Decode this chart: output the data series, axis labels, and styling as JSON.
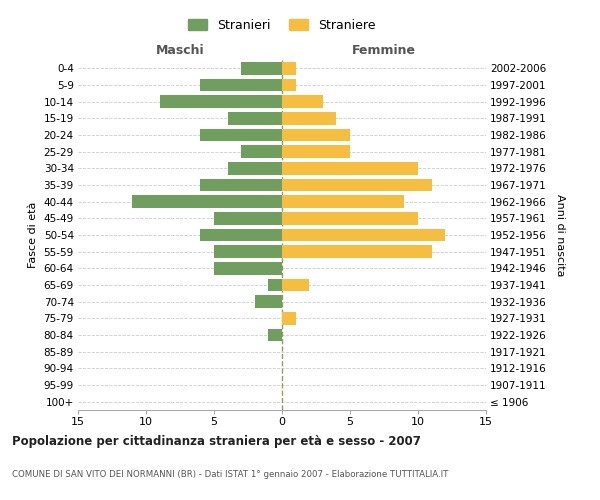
{
  "age_groups": [
    "100+",
    "95-99",
    "90-94",
    "85-89",
    "80-84",
    "75-79",
    "70-74",
    "65-69",
    "60-64",
    "55-59",
    "50-54",
    "45-49",
    "40-44",
    "35-39",
    "30-34",
    "25-29",
    "20-24",
    "15-19",
    "10-14",
    "5-9",
    "0-4"
  ],
  "birth_years": [
    "≤ 1906",
    "1907-1911",
    "1912-1916",
    "1917-1921",
    "1922-1926",
    "1927-1931",
    "1932-1936",
    "1937-1941",
    "1942-1946",
    "1947-1951",
    "1952-1956",
    "1957-1961",
    "1962-1966",
    "1967-1971",
    "1972-1976",
    "1977-1981",
    "1982-1986",
    "1987-1991",
    "1992-1996",
    "1997-2001",
    "2002-2006"
  ],
  "maschi": [
    0,
    0,
    0,
    0,
    1,
    0,
    2,
    1,
    5,
    5,
    6,
    5,
    11,
    6,
    4,
    3,
    6,
    4,
    9,
    6,
    3
  ],
  "femmine": [
    0,
    0,
    0,
    0,
    0,
    1,
    0,
    2,
    0,
    11,
    12,
    10,
    9,
    11,
    10,
    5,
    5,
    4,
    3,
    1,
    1
  ],
  "male_color": "#6f9e5e",
  "female_color": "#f5be41",
  "title": "Popolazione per cittadinanza straniera per età e sesso - 2007",
  "subtitle": "COMUNE DI SAN VITO DEI NORMANNI (BR) - Dati ISTAT 1° gennaio 2007 - Elaborazione TUTTITALIA.IT",
  "xlabel_left": "Maschi",
  "xlabel_right": "Femmine",
  "ylabel_left": "Fasce di età",
  "ylabel_right": "Anni di nascita",
  "legend_stranieri": "Stranieri",
  "legend_straniere": "Straniere",
  "xlim": 15,
  "background_color": "#ffffff",
  "grid_color": "#cccccc",
  "bar_height": 0.75
}
